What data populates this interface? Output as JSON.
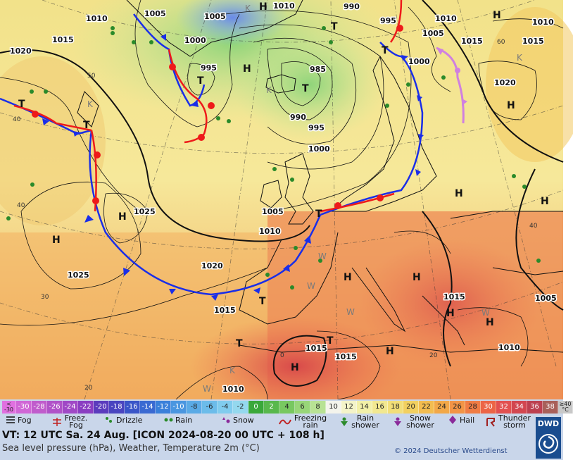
{
  "map": {
    "pressure_labels": [
      "1010",
      "1005",
      "1005",
      "1010",
      "990",
      "995",
      "1010",
      "1010",
      "1015",
      "1020",
      "1000",
      "1000",
      "995",
      "985",
      "990",
      "995",
      "1005",
      "1015",
      "1020",
      "1015",
      "1000",
      "1025",
      "1025",
      "1005",
      "1010",
      "1020",
      "1015",
      "1015",
      "1010",
      "1015",
      "1005",
      "1015",
      "1010"
    ],
    "temperature_labels": [
      "40",
      "40",
      "50",
      "30",
      "20",
      "60",
      "40",
      "20",
      "0"
    ],
    "highs": [
      "H",
      "H",
      "H",
      "H",
      "H",
      "H",
      "H",
      "H",
      "H",
      "H",
      "H",
      "H",
      "H",
      "H"
    ],
    "lows": [
      "T",
      "T",
      "T",
      "T",
      "T",
      "T",
      "T",
      "T",
      "T",
      "T"
    ],
    "other_letters": [
      "K",
      "K",
      "K",
      "K",
      "K",
      "W",
      "W",
      "W",
      "W",
      "W"
    ]
  },
  "legend": {
    "scale": [
      {
        "label": "< -30",
        "color": "#e070e0"
      },
      {
        "label": "-30",
        "color": "#d066d6"
      },
      {
        "label": "-28",
        "color": "#c05ccc"
      },
      {
        "label": "-26",
        "color": "#b052c8"
      },
      {
        "label": "-24",
        "color": "#a048c6"
      },
      {
        "label": "-22",
        "color": "#8a3ec2"
      },
      {
        "label": "-20",
        "color": "#5a3bbd"
      },
      {
        "label": "-18",
        "color": "#4a45c0"
      },
      {
        "label": "-16",
        "color": "#3a55c8"
      },
      {
        "label": "-14",
        "color": "#3a6ad2"
      },
      {
        "label": "-12",
        "color": "#3a80da"
      },
      {
        "label": "-10",
        "color": "#4a96e0"
      },
      {
        "label": "-8",
        "color": "#5aaae6"
      },
      {
        "label": "-6",
        "color": "#6cbcea"
      },
      {
        "label": "-4",
        "color": "#80ccee"
      },
      {
        "label": "-2",
        "color": "#94d8ee"
      },
      {
        "label": "0",
        "color": "#3aa83a"
      },
      {
        "label": "2",
        "color": "#58b84c"
      },
      {
        "label": "4",
        "color": "#78c860"
      },
      {
        "label": "6",
        "color": "#98d678"
      },
      {
        "label": "8",
        "color": "#b8e294"
      },
      {
        "label": "10",
        "color": "#f4f4ec"
      },
      {
        "label": "12",
        "color": "#f4f4c8"
      },
      {
        "label": "14",
        "color": "#f2f0a8"
      },
      {
        "label": "16",
        "color": "#f2e890"
      },
      {
        "label": "18",
        "color": "#f2de78"
      },
      {
        "label": "20",
        "color": "#f2d060"
      },
      {
        "label": "22",
        "color": "#f2bc50"
      },
      {
        "label": "24",
        "color": "#f2a848"
      },
      {
        "label": "26",
        "color": "#f29446"
      },
      {
        "label": "28",
        "color": "#f07c44"
      },
      {
        "label": "30",
        "color": "#ec6446"
      },
      {
        "label": "32",
        "color": "#e25050"
      },
      {
        "label": "34",
        "color": "#d24650"
      },
      {
        "label": "36",
        "color": "#bc4050"
      },
      {
        "label": "38",
        "color": "#a8605a"
      },
      {
        "label": "≥40 °C",
        "color": "#c8c8c8"
      }
    ],
    "symbols": {
      "fog": "Fog",
      "freezing_fog": "Freez. Fog",
      "drizzle": "Drizzle",
      "rain": "Rain",
      "snow": "Snow",
      "freezing_rain": "Freezing rain",
      "rain_shower": "Rain shower",
      "snow_shower": "Snow shower",
      "hail": "Hail",
      "thunderstorm": "Thunder storm"
    },
    "valid_time": "VT: 12 UTC Sa.  24 Aug. [ICON 2024-08-20  00 UTC + 108 h]",
    "subtitle": "Sea level pressure (hPa), Weather, Temperature 2m (°C)",
    "copyright": "© 2024 Deutscher Wetterdienst",
    "logo": "DWD",
    "colors": {
      "cold_front": "#1a2ee8",
      "warm_front": "#ee1a1a",
      "occlusion": "#d080e0",
      "isobar": "#111111"
    }
  }
}
